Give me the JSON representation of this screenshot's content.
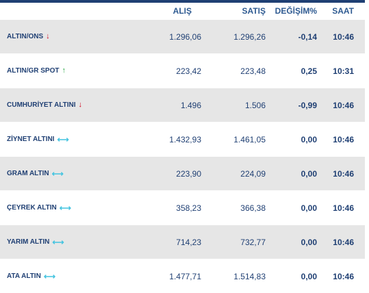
{
  "headers": {
    "buy": "ALIŞ",
    "sell": "SATIŞ",
    "change": "DEĞİŞİM%",
    "time": "SAAT"
  },
  "icons": {
    "down": "↓",
    "up": "↑",
    "flat": "⟷"
  },
  "rows": [
    {
      "name": "ALTIN/ONS",
      "trend": "down",
      "buy": "1.296,06",
      "sell": "1.296,26",
      "change": "-0,14",
      "time": "10:46"
    },
    {
      "name": "ALTIN/GR SPOT",
      "trend": "up",
      "buy": "223,42",
      "sell": "223,48",
      "change": "0,25",
      "time": "10:31"
    },
    {
      "name": "CUMHURİYET ALTINI",
      "trend": "down",
      "buy": "1.496",
      "sell": "1.506",
      "change": "-0,99",
      "time": "10:46"
    },
    {
      "name": "ZİYNET ALTINI",
      "trend": "flat",
      "buy": "1.432,93",
      "sell": "1.461,05",
      "change": "0,00",
      "time": "10:46"
    },
    {
      "name": "GRAM ALTIN",
      "trend": "flat",
      "buy": "223,90",
      "sell": "224,09",
      "change": "0,00",
      "time": "10:46"
    },
    {
      "name": "ÇEYREK ALTIN",
      "trend": "flat",
      "buy": "358,23",
      "sell": "366,38",
      "change": "0,00",
      "time": "10:46"
    },
    {
      "name": "YARIM ALTIN",
      "trend": "flat",
      "buy": "714,23",
      "sell": "732,77",
      "change": "0,00",
      "time": "10:46"
    },
    {
      "name": "ATA ALTIN",
      "trend": "flat",
      "buy": "1.477,71",
      "sell": "1.514,83",
      "change": "0,00",
      "time": "10:46"
    }
  ],
  "colors": {
    "header_text": "#2e5a91",
    "text": "#1f3f73",
    "row_alt": "#e6e6e6",
    "down": "#d0021b",
    "up": "#2aa845",
    "flat": "#45c4e0"
  }
}
